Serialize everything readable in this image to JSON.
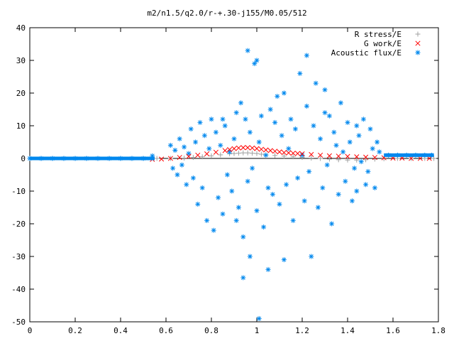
{
  "chart_data": {
    "type": "scatter",
    "title": "m2/n1.5/q2.0/r-+.30-j155/M0.05/512",
    "xlabel": "",
    "ylabel": "",
    "xlim": [
      0,
      1.8
    ],
    "ylim": [
      -50,
      40
    ],
    "grid": false,
    "legend_position": "top-right",
    "x_ticks": [
      "0",
      "0.2",
      "0.4",
      "0.6",
      "0.8",
      "1",
      "1.2",
      "1.4",
      "1.6",
      "1.8"
    ],
    "y_ticks": [
      "40",
      "30",
      "20",
      "10",
      "0",
      "-10",
      "-20",
      "-30",
      "-40",
      "-50"
    ],
    "series": [
      {
        "name": "R stress/E",
        "color": "#a0a0a0",
        "marker": "plus",
        "x": [
          0.56,
          0.62,
          0.68,
          0.72,
          0.76,
          0.8,
          0.84,
          0.88,
          0.9,
          0.92,
          0.94,
          0.96,
          0.98,
          1.0,
          1.02,
          1.04,
          1.08,
          1.12,
          1.16,
          1.2,
          1.24,
          1.28,
          1.32,
          1.36,
          1.4,
          1.44,
          1.48,
          1.52,
          1.56,
          1.62,
          1.68,
          1.74,
          1.78
        ],
        "y": [
          0.0,
          0.0,
          0.1,
          0.3,
          0.5,
          0.8,
          1.1,
          1.4,
          1.5,
          1.6,
          1.7,
          1.7,
          1.6,
          1.5,
          1.3,
          1.1,
          0.9,
          0.7,
          0.5,
          0.3,
          0.1,
          0.0,
          -0.2,
          -0.4,
          -0.5,
          -0.5,
          -0.4,
          -0.2,
          -0.1,
          0.0,
          0.0,
          0.0,
          0.0
        ]
      },
      {
        "name": "G work/E",
        "color": "#ff0000",
        "marker": "cross",
        "x": [
          0.54,
          0.58,
          0.62,
          0.66,
          0.7,
          0.74,
          0.78,
          0.82,
          0.86,
          0.88,
          0.9,
          0.92,
          0.94,
          0.96,
          0.98,
          1.0,
          1.02,
          1.04,
          1.06,
          1.08,
          1.1,
          1.12,
          1.14,
          1.16,
          1.18,
          1.2,
          1.24,
          1.28,
          1.32,
          1.36,
          1.4,
          1.44,
          1.48,
          1.52,
          1.56,
          1.6,
          1.64,
          1.68,
          1.72,
          1.76
        ],
        "y": [
          -0.3,
          -0.2,
          0.0,
          0.3,
          0.6,
          1.0,
          1.4,
          1.9,
          2.4,
          2.7,
          3.0,
          3.2,
          3.3,
          3.3,
          3.2,
          3.0,
          2.8,
          2.6,
          2.4,
          2.2,
          2.0,
          1.8,
          1.7,
          1.6,
          1.5,
          1.4,
          1.2,
          1.0,
          0.8,
          0.7,
          0.6,
          0.5,
          0.4,
          0.3,
          0.2,
          0.1,
          0.1,
          0.0,
          0.0,
          0.0
        ]
      },
      {
        "name": "Acoustic flux/E",
        "color": "#0088ee",
        "marker": "star",
        "x": [
          0.0,
          0.05,
          0.1,
          0.15,
          0.2,
          0.25,
          0.3,
          0.35,
          0.4,
          0.45,
          0.5,
          0.54,
          1.58,
          1.62,
          1.66,
          1.7,
          1.74,
          1.77,
          0.62,
          0.63,
          0.64,
          0.65,
          0.66,
          0.67,
          0.68,
          0.69,
          0.7,
          0.71,
          0.72,
          0.73,
          0.74,
          0.75,
          0.76,
          0.77,
          0.78,
          0.79,
          0.8,
          0.81,
          0.82,
          0.83,
          0.84,
          0.85,
          0.86,
          0.87,
          0.88,
          0.89,
          0.9,
          0.91,
          0.92,
          0.93,
          0.94,
          0.95,
          0.96,
          0.97,
          0.98,
          0.99,
          1.0,
          1.01,
          1.02,
          1.03,
          1.04,
          1.05,
          1.06,
          1.07,
          1.08,
          1.09,
          1.1,
          1.11,
          1.12,
          1.13,
          1.14,
          1.15,
          1.16,
          1.17,
          1.18,
          1.19,
          1.2,
          1.21,
          1.22,
          1.23,
          1.24,
          1.25,
          1.26,
          1.27,
          1.28,
          1.29,
          1.3,
          1.31,
          1.32,
          1.33,
          1.34,
          1.35,
          1.36,
          1.37,
          1.38,
          1.39,
          1.4,
          1.41,
          1.42,
          1.43,
          1.44,
          1.45,
          1.46,
          1.47,
          1.48,
          1.49,
          1.5,
          1.51,
          1.52,
          1.53,
          1.54,
          0.96,
          1.0,
          1.01,
          1.22,
          0.94,
          0.91,
          0.85,
          0.97,
          1.05,
          1.12,
          1.3,
          1.44
        ],
        "y": [
          0.0,
          0.0,
          0.0,
          0.0,
          0.0,
          0.0,
          0.0,
          0.0,
          0.0,
          0.0,
          0.0,
          0.8,
          1.0,
          1.0,
          1.0,
          1.0,
          1.0,
          1.0,
          4.0,
          -3.0,
          2.5,
          -5.0,
          6.0,
          -2.0,
          3.5,
          -8.0,
          1.5,
          9.0,
          -6.0,
          5.0,
          -14.0,
          11.0,
          -9.0,
          7.0,
          -19.0,
          3.0,
          12.0,
          -22.0,
          8.0,
          -12.0,
          4.0,
          -17.0,
          10.0,
          -5.0,
          2.0,
          -10.0,
          6.0,
          14.0,
          -15.0,
          17.0,
          -24.0,
          12.0,
          -7.0,
          8.0,
          -3.0,
          29.0,
          -16.0,
          5.0,
          13.0,
          -21.0,
          1.0,
          -9.0,
          15.0,
          -11.0,
          11.0,
          19.0,
          -14.0,
          7.0,
          20.0,
          -8.0,
          3.0,
          12.0,
          -19.0,
          9.0,
          -6.0,
          26.0,
          1.0,
          -13.0,
          16.0,
          -4.0,
          -30.0,
          10.0,
          23.0,
          -15.0,
          6.0,
          -9.0,
          21.0,
          -2.0,
          13.0,
          -20.0,
          8.0,
          4.0,
          -11.0,
          17.0,
          2.0,
          -7.0,
          11.0,
          5.0,
          -13.0,
          -3.0,
          10.0,
          7.0,
          -1.0,
          12.0,
          -8.0,
          -4.0,
          9.0,
          3.0,
          -9.0,
          5.0,
          2.0,
          33.0,
          30.0,
          -49.0,
          31.5,
          -36.5,
          -19.0,
          12.0,
          -30.0,
          -34.0,
          -31.0,
          14.0,
          -10.0
        ]
      }
    ]
  }
}
